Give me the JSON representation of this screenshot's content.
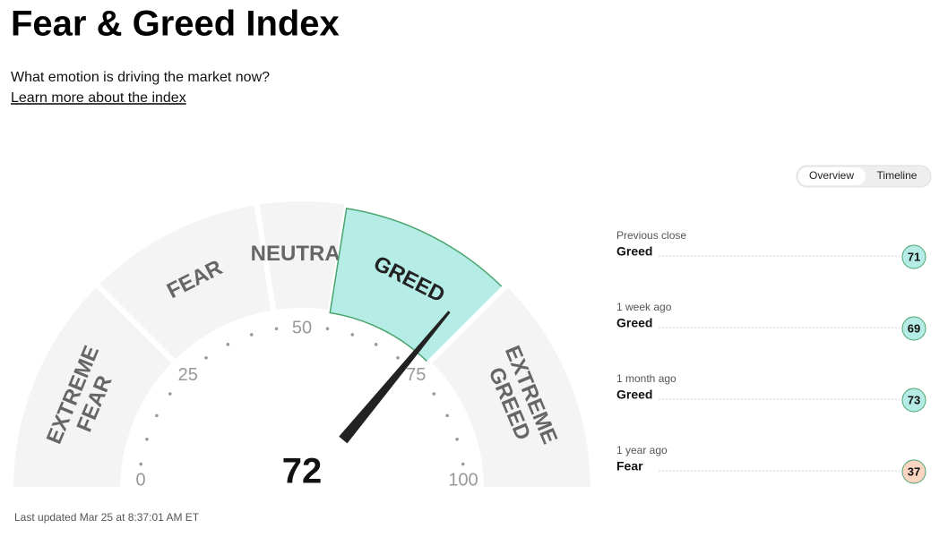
{
  "header": {
    "title": "Fear & Greed Index",
    "subtitle": "What emotion is driving the market now?",
    "link": "Learn more about the index"
  },
  "tabs": [
    "Overview",
    "Timeline"
  ],
  "gauge": {
    "value": 72,
    "min": 0,
    "max": 100,
    "ticks": [
      0,
      25,
      50,
      75,
      100
    ],
    "minor_step": 5,
    "segments": [
      {
        "label": [
          "EXTREME",
          "FEAR"
        ],
        "from": 0,
        "to": 25
      },
      {
        "label": [
          "FEAR"
        ],
        "from": 25,
        "to": 45
      },
      {
        "label": [
          "NEUTRAL"
        ],
        "from": 45,
        "to": 55
      },
      {
        "label": [
          "GREED"
        ],
        "from": 55,
        "to": 75
      },
      {
        "label": [
          "EXTREME",
          "GREED"
        ],
        "from": 75,
        "to": 100
      }
    ],
    "active_color": "#b5ece5"
  },
  "history": [
    {
      "label": "Previous close",
      "rating": "Greed",
      "value": 71,
      "color": "#b5ece5"
    },
    {
      "label": "1 week ago",
      "rating": "Greed",
      "value": 69,
      "color": "#b5ece5"
    },
    {
      "label": "1 month ago",
      "rating": "Greed",
      "value": 73,
      "color": "#b5ece5"
    },
    {
      "label": "1 year ago",
      "rating": "Fear",
      "value": 37,
      "color": "#fcd5c2"
    }
  ],
  "footer": "Last updated Mar 25 at 8:37:01 AM ET"
}
